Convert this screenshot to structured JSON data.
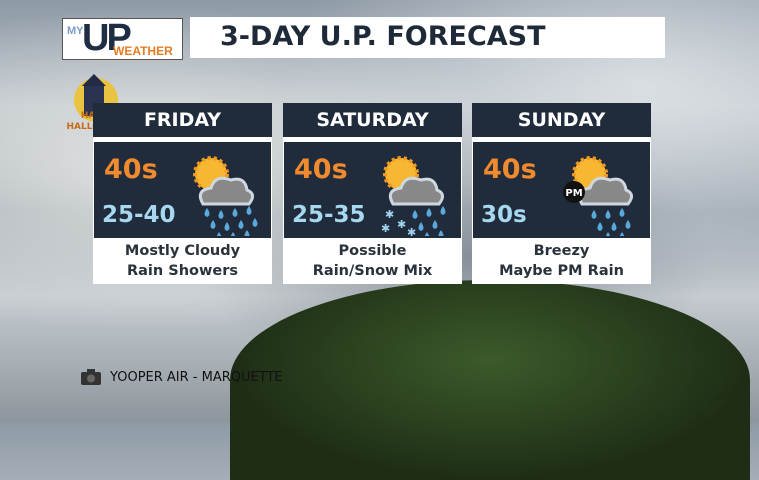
{
  "logo": {
    "my": "MY",
    "up": "UP",
    "weather": "WEATHER"
  },
  "title": "3-DAY U.P. FORECAST",
  "badge": "HAPPY HALLOWEEN",
  "days": [
    {
      "day": "FRIDAY",
      "high": "40s",
      "low": "25-40",
      "line1": "Mostly Cloudy",
      "line2": "Rain Showers",
      "icon": "sun-cloud-rain-icon"
    },
    {
      "day": "SATURDAY",
      "high": "40s",
      "low": "25-35",
      "line1": "Possible",
      "line2": "Rain/Snow Mix",
      "icon": "sun-cloud-rain-snow-icon"
    },
    {
      "day": "SUNDAY",
      "high": "40s",
      "low": "30s",
      "line1": "Breezy",
      "line2": "Maybe PM Rain",
      "icon": "sun-cloud-pm-rain-icon",
      "icon_label": "PM"
    }
  ],
  "credit": "YOOPER AIR - MARQUETTE",
  "colors": {
    "panel": "#202c3b",
    "high": "#f08a2e",
    "low": "#a8d8f0",
    "brand_orange": "#e77b25"
  }
}
